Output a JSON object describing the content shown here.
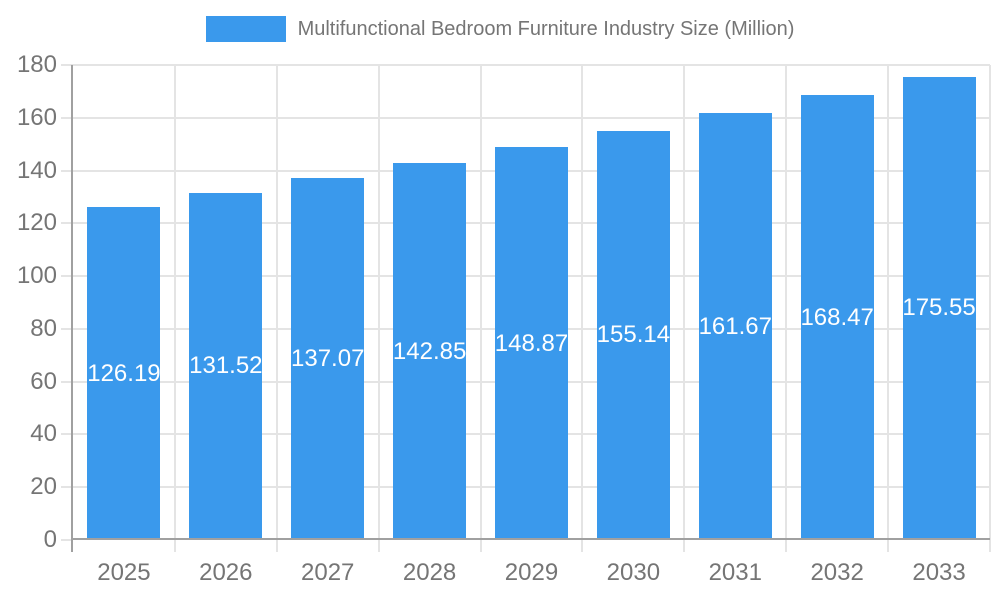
{
  "chart_data": {
    "type": "bar",
    "title": "Multifunctional Bedroom Furniture Industry Size (Million)",
    "legend": [
      "Multifunctional Bedroom Furniture Industry Size (Million)"
    ],
    "legend_position": "top-center",
    "categories": [
      "2025",
      "2026",
      "2027",
      "2028",
      "2029",
      "2030",
      "2031",
      "2032",
      "2033"
    ],
    "series": [
      {
        "name": "Multifunctional Bedroom Furniture Industry Size (Million)",
        "values": [
          126.19,
          131.52,
          137.07,
          142.85,
          148.87,
          155.14,
          161.67,
          168.47,
          175.55
        ]
      }
    ],
    "value_labels": [
      "126.19",
      "131.52",
      "137.07",
      "142.85",
      "148.87",
      "155.14",
      "161.67",
      "168.47",
      "175.55"
    ],
    "value_label_position": "inside-middle",
    "xlabel": "",
    "ylabel": "",
    "ylim": [
      0,
      180
    ],
    "yticks": [
      0,
      20,
      40,
      60,
      80,
      100,
      120,
      140,
      160,
      180
    ],
    "grid": true,
    "colors": {
      "bar": "#3A99EC",
      "text": "#757575",
      "grid_line": "#E4E4E4",
      "axis_line": "#A0A0A0",
      "bar_label": "#FFFFFF",
      "background": "#FFFFFF"
    }
  }
}
